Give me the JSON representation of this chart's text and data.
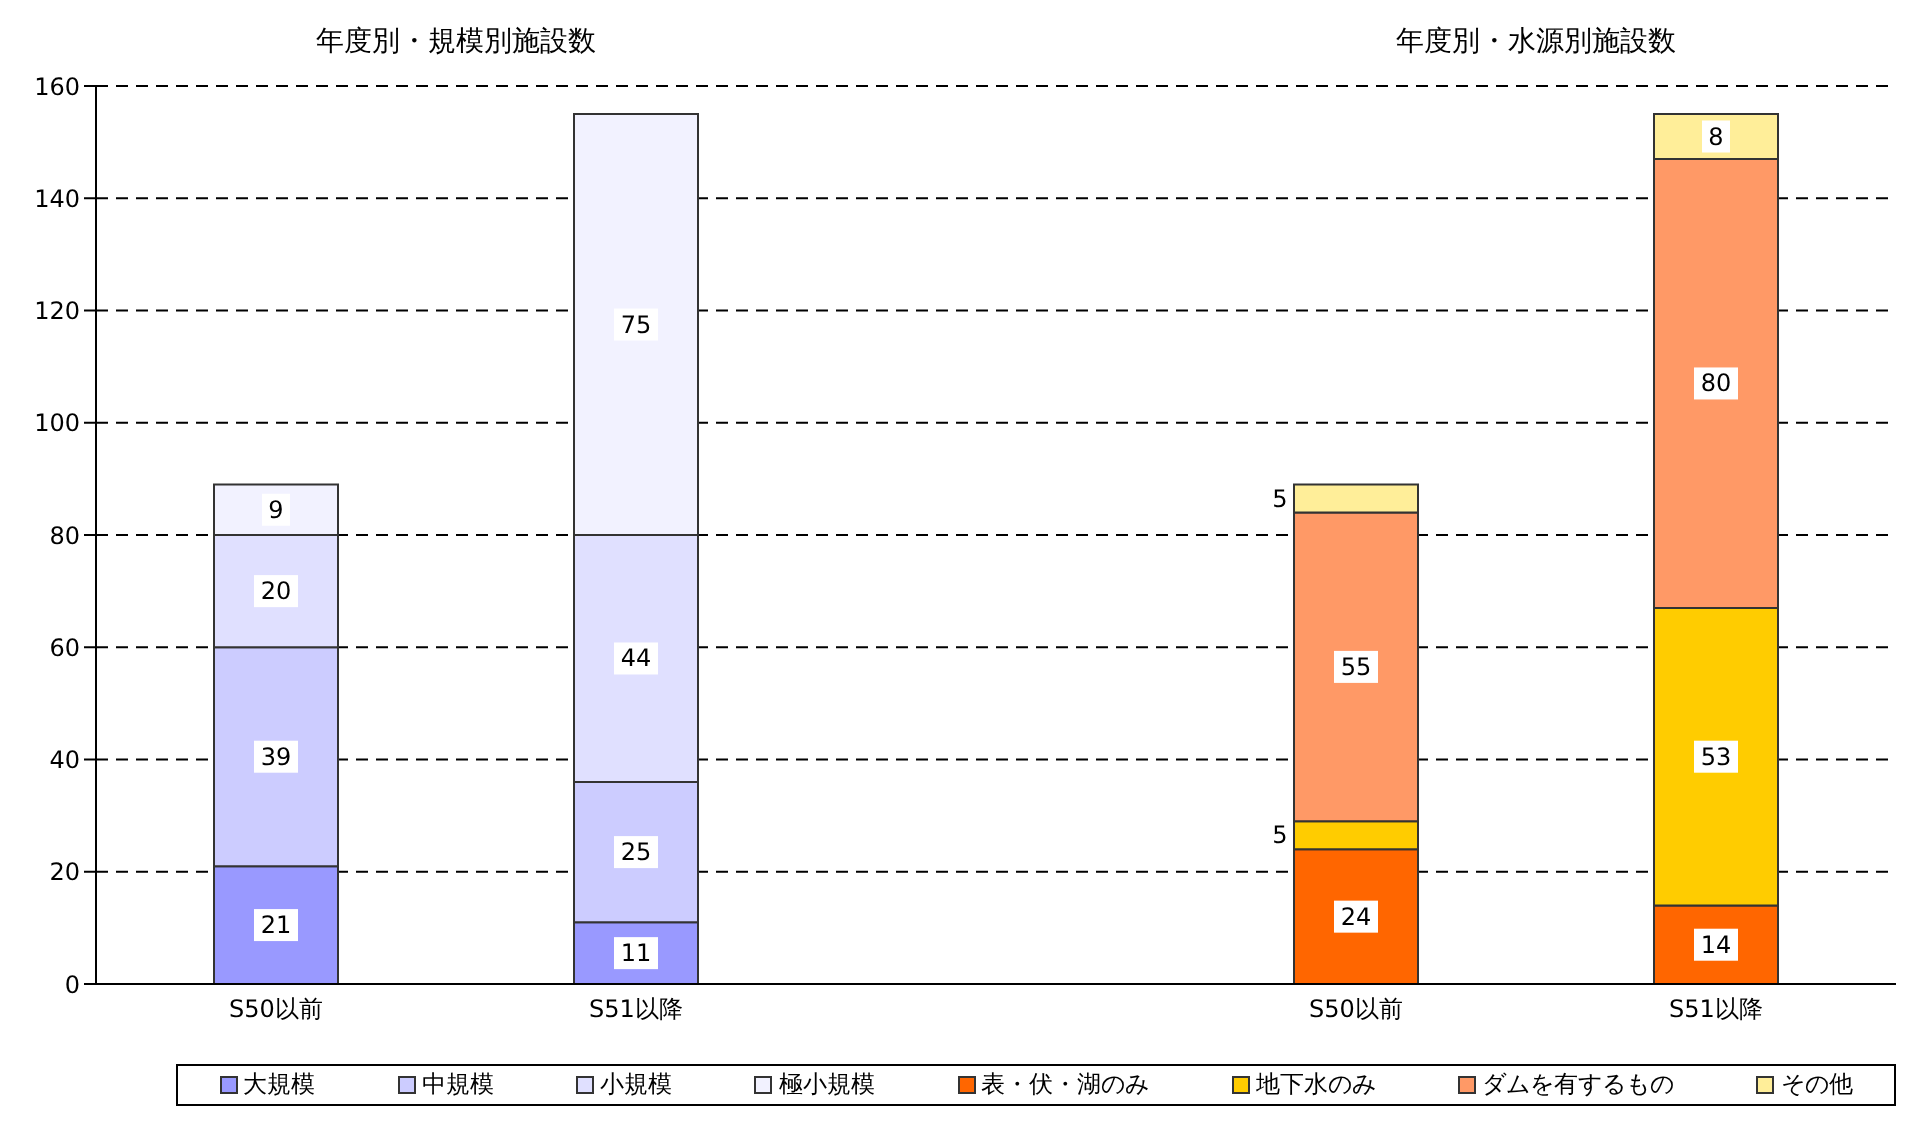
{
  "chart_data": {
    "type": "bar",
    "stacked": true,
    "annotations": [
      "年度別・規模別施設数",
      "年度別・水源別施設数"
    ],
    "categories": [
      "S50以前",
      "S51以降",
      null,
      "S50以前",
      "S51以降"
    ],
    "series": [
      {
        "name": "大規模",
        "color": "#9999ff",
        "values": [
          21,
          11,
          null,
          null,
          null
        ]
      },
      {
        "name": "中規模",
        "color": "#ccccff",
        "values": [
          39,
          25,
          null,
          null,
          null
        ]
      },
      {
        "name": "小規模",
        "color": "#e0e0ff",
        "values": [
          20,
          44,
          null,
          null,
          null
        ]
      },
      {
        "name": "極小規模",
        "color": "#f2f2ff",
        "values": [
          9,
          75,
          null,
          null,
          null
        ]
      },
      {
        "name": "表・伏・湖のみ",
        "color": "#ff6600",
        "values": [
          null,
          null,
          null,
          24,
          14
        ]
      },
      {
        "name": "地下水のみ",
        "color": "#ffcc00",
        "values": [
          null,
          null,
          null,
          5,
          53
        ]
      },
      {
        "name": "ダムを有するもの",
        "color": "#ff9966",
        "values": [
          null,
          null,
          null,
          55,
          80
        ]
      },
      {
        "name": "その他",
        "color": "#ffee99",
        "values": [
          null,
          null,
          null,
          5,
          8
        ]
      }
    ],
    "ylim": [
      0,
      160
    ],
    "yticks": [
      0,
      20,
      40,
      60,
      80,
      100,
      120,
      140,
      160
    ],
    "grid": "y",
    "legend": "bottom",
    "data_labels": true
  }
}
